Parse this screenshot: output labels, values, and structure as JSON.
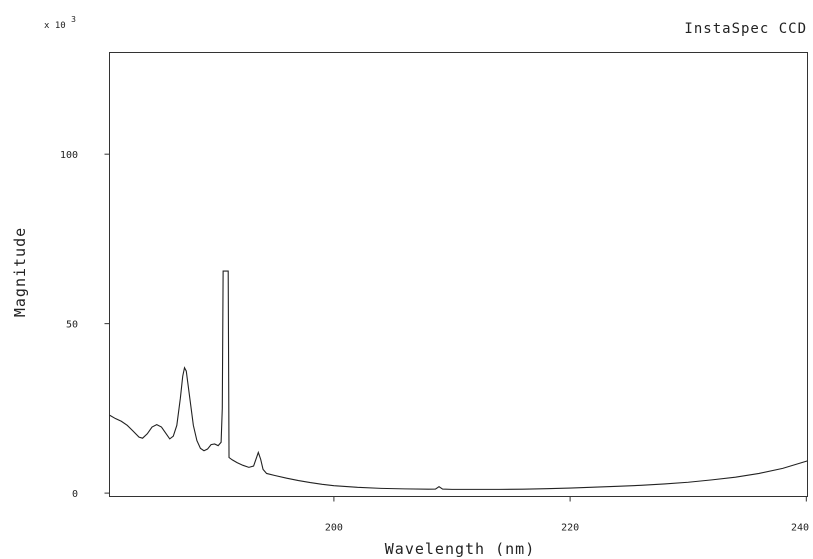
{
  "chart_data": {
    "type": "line",
    "title": "InstaSpec CCD",
    "xlabel": "Wavelength (nm)",
    "ylabel": "Magnitude",
    "y_multiplier": "x 10",
    "y_multiplier_exp": "3",
    "xlim": [
      181,
      240.1
    ],
    "ylim": [
      -1,
      130
    ],
    "x_ticks": [
      200,
      220,
      240
    ],
    "y_ticks": [
      0,
      50,
      100
    ],
    "x_tick_labels": [
      "200",
      "220",
      "240"
    ],
    "y_tick_labels": [
      "0",
      "50",
      "100"
    ],
    "grid": false,
    "series": [
      {
        "points": [
          [
            181.0,
            23.0
          ],
          [
            181.5,
            22.0
          ],
          [
            182.0,
            21.2
          ],
          [
            182.5,
            20.0
          ],
          [
            183.0,
            18.3
          ],
          [
            183.5,
            16.5
          ],
          [
            183.8,
            16.2
          ],
          [
            184.2,
            17.5
          ],
          [
            184.6,
            19.5
          ],
          [
            185.0,
            20.2
          ],
          [
            185.4,
            19.5
          ],
          [
            185.8,
            17.5
          ],
          [
            186.1,
            16.0
          ],
          [
            186.4,
            16.8
          ],
          [
            186.7,
            20.0
          ],
          [
            187.0,
            28.0
          ],
          [
            187.2,
            34.5
          ],
          [
            187.35,
            37.0
          ],
          [
            187.5,
            36.0
          ],
          [
            187.8,
            28.0
          ],
          [
            188.1,
            20.0
          ],
          [
            188.4,
            15.5
          ],
          [
            188.7,
            13.2
          ],
          [
            189.0,
            12.5
          ],
          [
            189.3,
            13.0
          ],
          [
            189.6,
            14.3
          ],
          [
            189.9,
            14.5
          ],
          [
            190.2,
            14.0
          ],
          [
            190.45,
            15.0
          ],
          [
            190.55,
            25.0
          ],
          [
            190.62,
            65.5
          ],
          [
            191.05,
            65.5
          ],
          [
            191.12,
            10.5
          ],
          [
            191.4,
            9.8
          ],
          [
            191.8,
            9.0
          ],
          [
            192.3,
            8.2
          ],
          [
            192.8,
            7.6
          ],
          [
            193.2,
            8.0
          ],
          [
            193.45,
            10.5
          ],
          [
            193.6,
            12.0
          ],
          [
            193.8,
            10.0
          ],
          [
            194.0,
            7.0
          ],
          [
            194.3,
            5.8
          ],
          [
            195.0,
            5.2
          ],
          [
            196.0,
            4.4
          ],
          [
            197.0,
            3.7
          ],
          [
            198.0,
            3.1
          ],
          [
            199.0,
            2.6
          ],
          [
            200.0,
            2.2
          ],
          [
            202.0,
            1.7
          ],
          [
            204.0,
            1.4
          ],
          [
            206.0,
            1.25
          ],
          [
            208.0,
            1.15
          ],
          [
            208.6,
            1.2
          ],
          [
            208.9,
            1.9
          ],
          [
            209.2,
            1.2
          ],
          [
            210.0,
            1.1
          ],
          [
            212.0,
            1.1
          ],
          [
            214.0,
            1.1
          ],
          [
            216.0,
            1.15
          ],
          [
            218.0,
            1.3
          ],
          [
            220.0,
            1.5
          ],
          [
            222.0,
            1.75
          ],
          [
            224.0,
            2.0
          ],
          [
            226.0,
            2.3
          ],
          [
            228.0,
            2.7
          ],
          [
            230.0,
            3.2
          ],
          [
            232.0,
            3.9
          ],
          [
            234.0,
            4.7
          ],
          [
            236.0,
            5.8
          ],
          [
            238.0,
            7.3
          ],
          [
            240.1,
            9.5
          ]
        ]
      }
    ]
  }
}
